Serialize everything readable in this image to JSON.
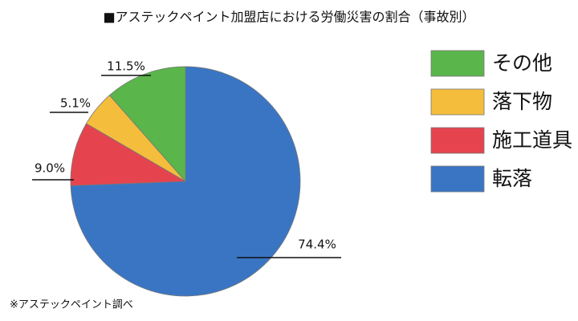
{
  "chart_data": {
    "type": "pie",
    "title": "■アステックペイント加盟店における労働災害の割合（事故別）",
    "note": "※アステックペイント調べ",
    "categories": [
      "転落",
      "施工道具",
      "落下物",
      "その他"
    ],
    "values": [
      74.4,
      9.0,
      5.1,
      11.5
    ],
    "value_labels": [
      "74.4%",
      "9.0%",
      "5.1%",
      "11.5%"
    ],
    "colors": [
      "#3a75c4",
      "#e5444f",
      "#f5bd3c",
      "#5ab54b"
    ]
  }
}
